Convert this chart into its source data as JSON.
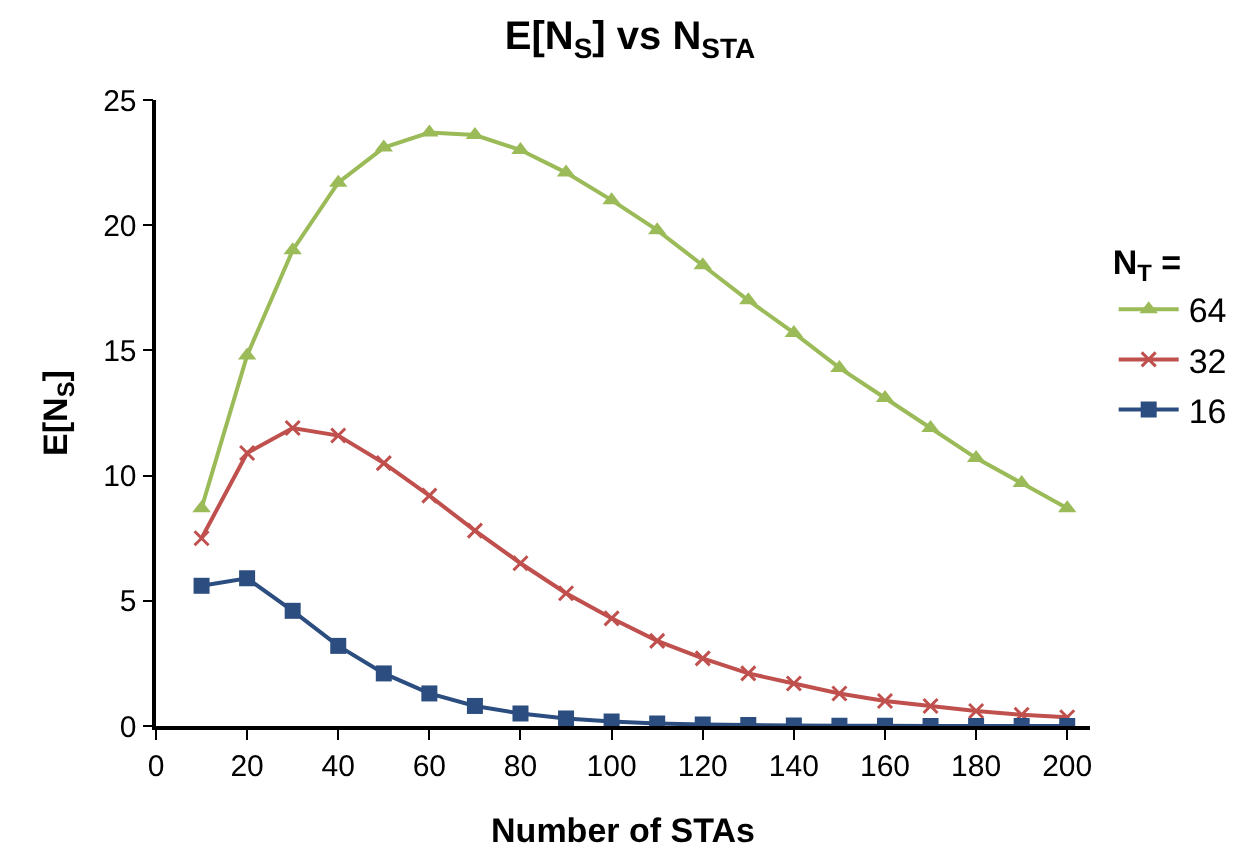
{
  "chart_data": {
    "type": "line",
    "title": "E[N$_{S}$] vs N$_{STA}$",
    "xlabel": "Number of STAs",
    "ylabel": "E[N$_{S}$]",
    "legend_title": "N$_{T}$ =",
    "legend": "right",
    "grid": false,
    "x": [
      10,
      20,
      30,
      40,
      50,
      60,
      70,
      80,
      90,
      100,
      110,
      120,
      130,
      140,
      150,
      160,
      170,
      180,
      190,
      200
    ],
    "xlim": [
      0,
      205
    ],
    "xticks": [
      0,
      20,
      40,
      60,
      80,
      100,
      120,
      140,
      160,
      180,
      200
    ],
    "ylim": [
      0,
      25
    ],
    "yticks": [
      0,
      5,
      10,
      15,
      20,
      25
    ],
    "series": [
      {
        "name": "64",
        "color": "#9bbb59",
        "marker": "triangle",
        "values": [
          8.7,
          14.8,
          19.0,
          21.7,
          23.1,
          23.7,
          23.6,
          23.0,
          22.1,
          21.0,
          19.8,
          18.4,
          17.0,
          15.7,
          14.3,
          13.1,
          11.9,
          10.7,
          9.7,
          8.7
        ]
      },
      {
        "name": "32",
        "color": "#c0504d",
        "marker": "cross",
        "values": [
          7.5,
          10.9,
          11.9,
          11.6,
          10.5,
          9.2,
          7.8,
          6.5,
          5.3,
          4.3,
          3.4,
          2.7,
          2.1,
          1.7,
          1.3,
          1.0,
          0.8,
          0.6,
          0.45,
          0.35
        ]
      },
      {
        "name": "16",
        "color": "#2c4d7f",
        "marker": "square",
        "values": [
          5.6,
          5.9,
          4.6,
          3.2,
          2.1,
          1.3,
          0.8,
          0.5,
          0.3,
          0.18,
          0.1,
          0.06,
          0.04,
          0.02,
          0.01,
          0.01,
          0,
          0,
          0,
          0
        ]
      }
    ]
  }
}
